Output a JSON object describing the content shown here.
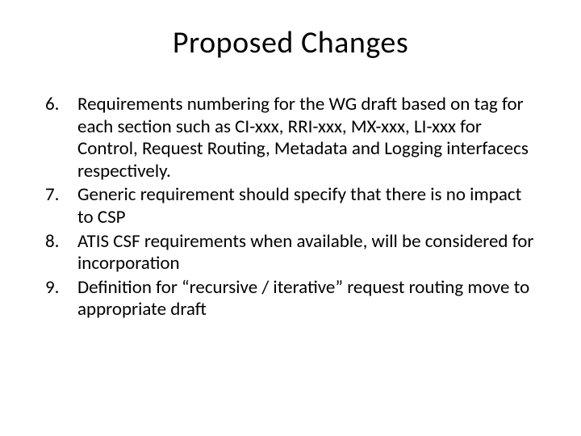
{
  "slide": {
    "title": "Proposed Changes",
    "title_fontsize": 38,
    "title_color": "#000000",
    "body_fontsize": 23,
    "body_color": "#000000",
    "background_color": "#ffffff",
    "list_start": 6,
    "items": [
      "Requirements numbering for the WG draft based on tag for each section such as CI-xxx, RRI-xxx, MX-xxx, LI-xxx for Control, Request Routing, Metadata and Logging interfacecs respectively.",
      "Generic requirement should specify that there is no impact to CSP",
      "ATIS CSF requirements when available, will be considered for incorporation",
      "Definition for “recursive / iterative” request routing move to appropriate draft"
    ]
  }
}
